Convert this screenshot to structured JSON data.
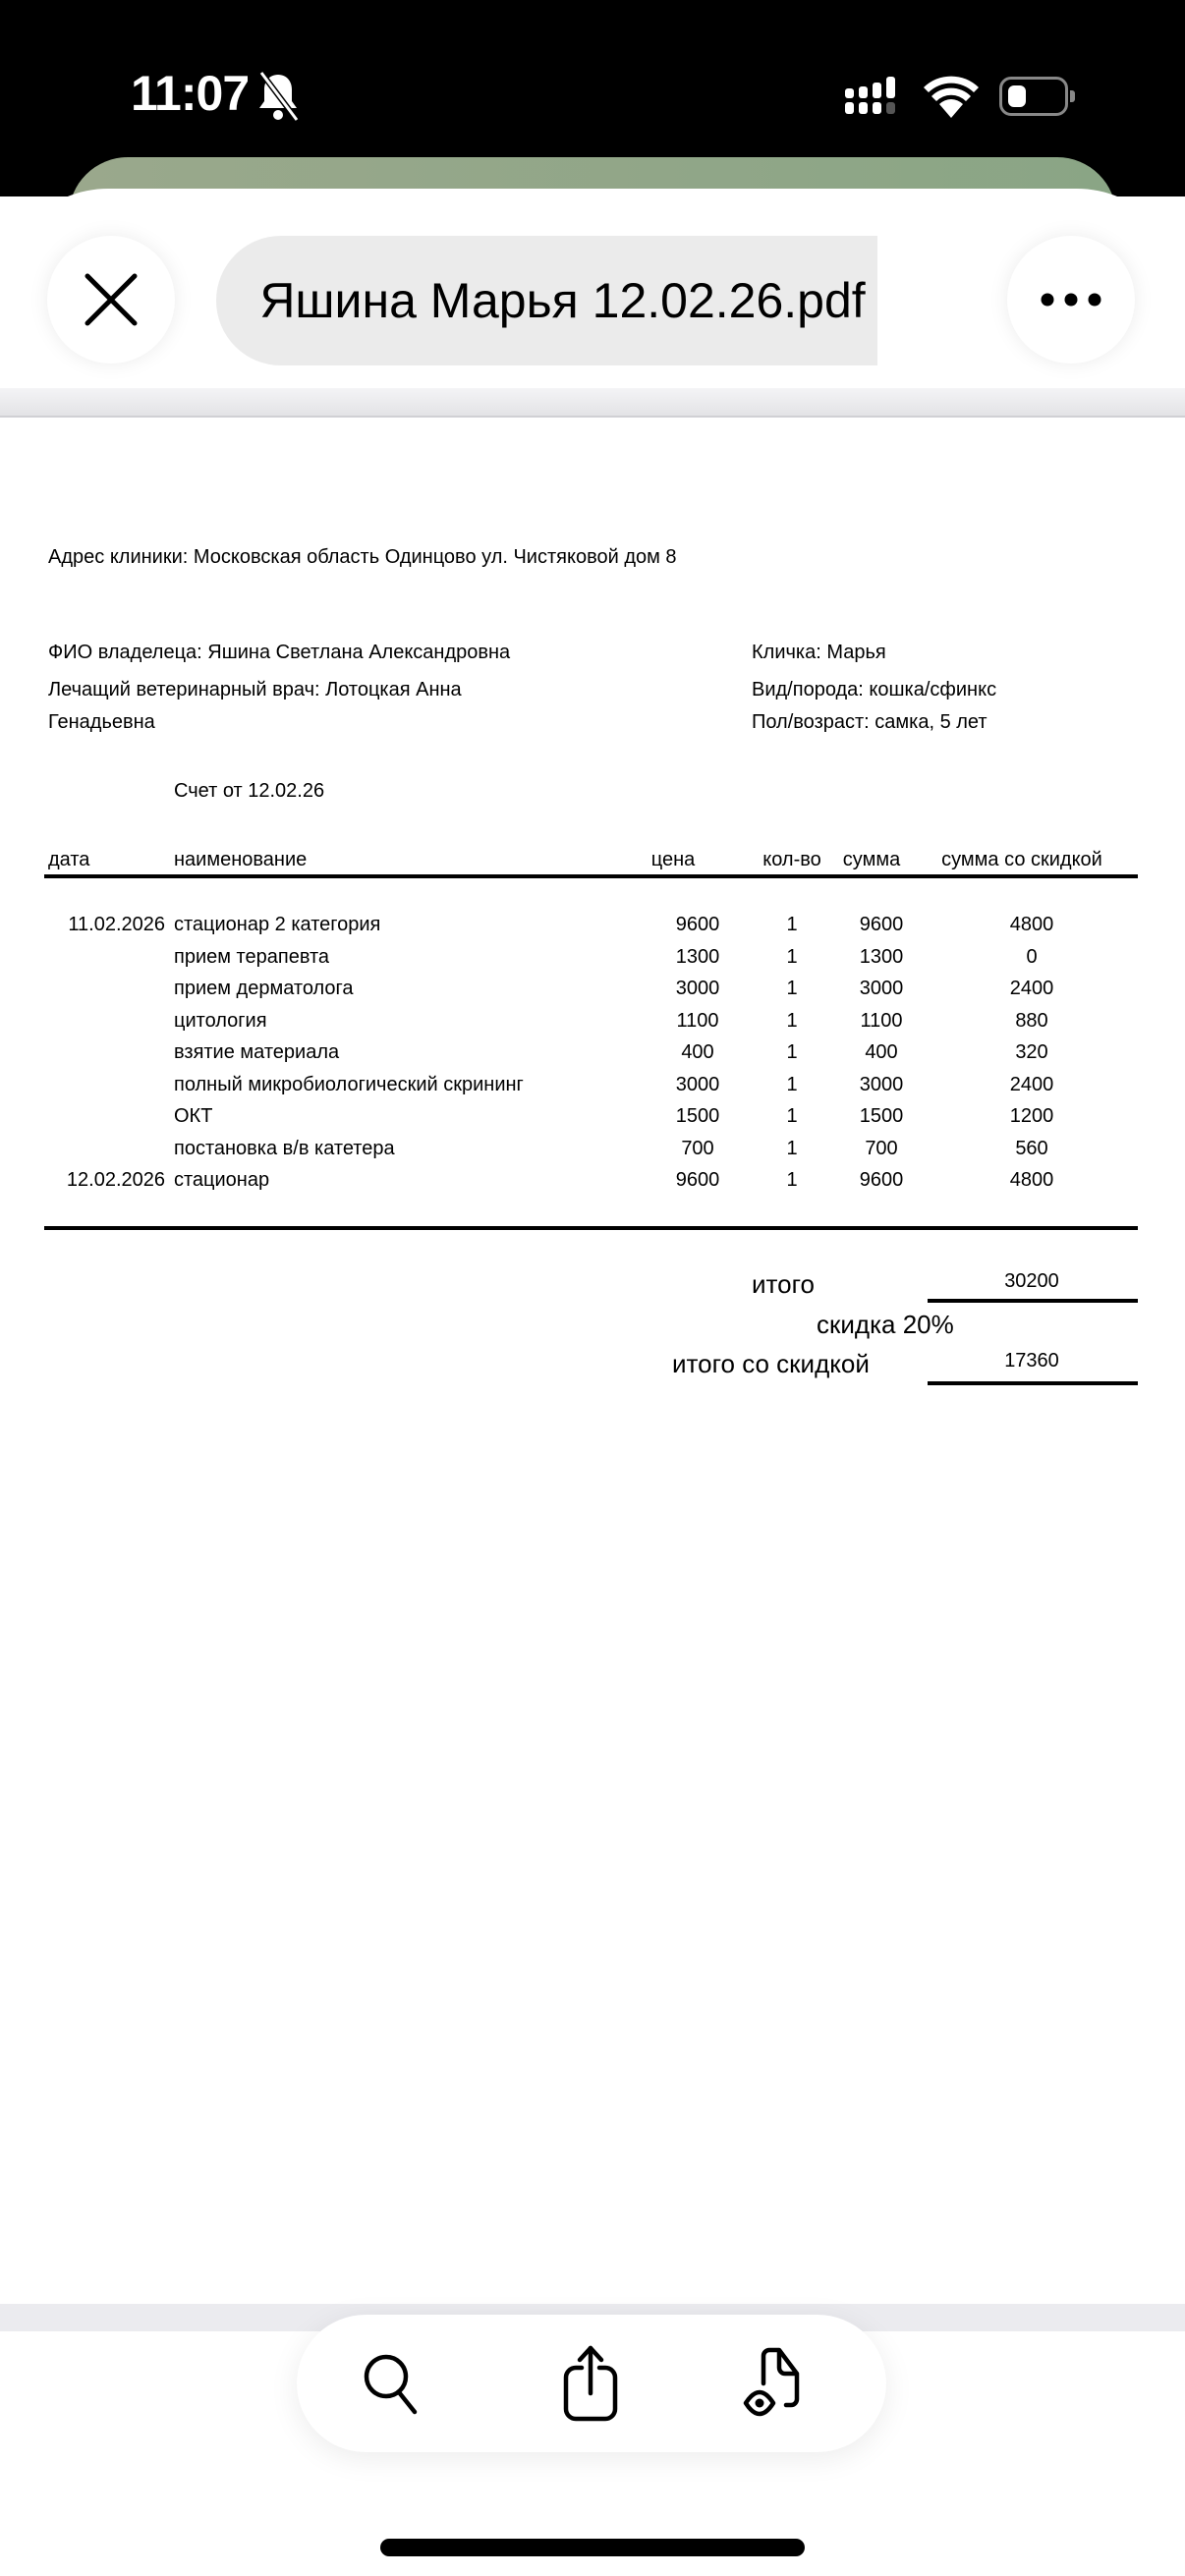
{
  "status_bar": {
    "time": "11:07",
    "icons": [
      "bell-slash-icon",
      "signal-icon",
      "wifi-icon",
      "battery-icon"
    ]
  },
  "header": {
    "title": "Яшина Марья 12.02.26.pdf",
    "close_icon": "close-icon",
    "more_icon": "more-icon"
  },
  "document": {
    "address": "Адрес клиники: Московская область Одинцово ул. Чистяковой дом 8",
    "owner": "ФИО владелеца: Яшина Светлана Александровна",
    "doctor_line1": "Лечащий ветеринарный врач: Лотоцкая Анна",
    "doctor_line2": "Генадьевна",
    "pet_name": "Кличка: Марья",
    "species": "Вид/порода: кошка/сфинкс",
    "sex_age": "Пол/возраст: самка, 5 лет",
    "invoice_title": "Счет от 12.02.26",
    "columns": [
      "дата",
      "наименование",
      "цена",
      "кол-во",
      "сумма",
      "сумма со скидкой"
    ],
    "rows": [
      {
        "date": "11.02.2026",
        "name": "стационар 2 категория",
        "price": "9600",
        "qty": "1",
        "sum": "9600",
        "discounted": "4800"
      },
      {
        "date": "",
        "name": "прием терапевта",
        "price": "1300",
        "qty": "1",
        "sum": "1300",
        "discounted": "0"
      },
      {
        "date": "",
        "name": "прием дерматолога",
        "price": "3000",
        "qty": "1",
        "sum": "3000",
        "discounted": "2400"
      },
      {
        "date": "",
        "name": "цитология",
        "price": "1100",
        "qty": "1",
        "sum": "1100",
        "discounted": "880"
      },
      {
        "date": "",
        "name": "взятие материала",
        "price": "400",
        "qty": "1",
        "sum": "400",
        "discounted": "320"
      },
      {
        "date": "",
        "name": "полный микробиологический скрининг",
        "price": "3000",
        "qty": "1",
        "sum": "3000",
        "discounted": "2400"
      },
      {
        "date": "",
        "name": "ОКТ",
        "price": "1500",
        "qty": "1",
        "sum": "1500",
        "discounted": "1200"
      },
      {
        "date": "",
        "name": "постановка в/в катетера",
        "price": "700",
        "qty": "1",
        "sum": "700",
        "discounted": "560"
      },
      {
        "date": "12.02.2026",
        "name": "стационар",
        "price": "9600",
        "qty": "1",
        "sum": "9600",
        "discounted": "4800"
      }
    ],
    "total_label": "итого",
    "total_value": "30200",
    "discount_label": "скидка 20%",
    "total_discount_label": "итого со скидкой",
    "total_discount_value": "17360"
  },
  "toolbar": {
    "items": [
      "search-icon",
      "share-icon",
      "document-eye-icon"
    ]
  }
}
